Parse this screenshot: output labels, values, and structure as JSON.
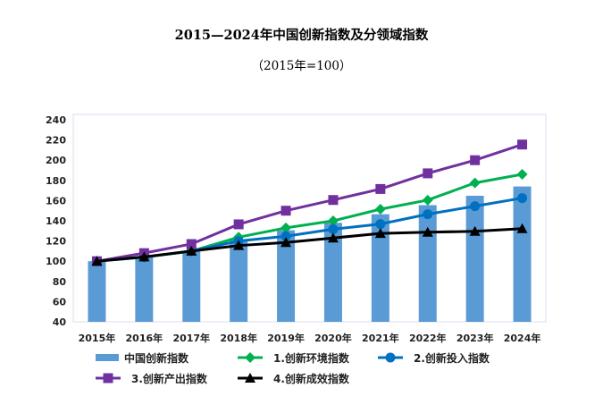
{
  "chart_data": {
    "type": "bar+line",
    "title": "2015—2024年中国创新指数及分领域指数",
    "subtitle": "（2015年=100）",
    "categories": [
      "2015年",
      "2016年",
      "2017年",
      "2018年",
      "2019年",
      "2020年",
      "2021年",
      "2022年",
      "2023年",
      "2024年"
    ],
    "ylim": [
      40,
      240
    ],
    "yticks": [
      40,
      60,
      80,
      100,
      120,
      140,
      160,
      180,
      200,
      220,
      240
    ],
    "grid": false,
    "legend_position": "bottom",
    "series": [
      {
        "name": "中国创新指数",
        "kind": "bar",
        "color": "#5b9bd5",
        "values": [
          100,
          104,
          110,
          121,
          130.6,
          138,
          146.5,
          155.5,
          164.8,
          174
        ]
      },
      {
        "name": "1.创新环境指数",
        "kind": "line",
        "marker": "diamond",
        "color": "#00b050",
        "values": [
          100,
          104,
          110,
          123.8,
          133,
          140,
          151.5,
          160.5,
          177.5,
          186
        ]
      },
      {
        "name": "2.创新投入指数",
        "kind": "line",
        "marker": "circle",
        "color": "#0070c0",
        "values": [
          100,
          104,
          110,
          120,
          124.7,
          131.7,
          136.8,
          146.5,
          154.5,
          162.5
        ]
      },
      {
        "name": "3.创新产出指数",
        "kind": "line",
        "marker": "square",
        "color": "#7030a0",
        "values": [
          100,
          108,
          117,
          136.5,
          150,
          160.6,
          171.5,
          187,
          200,
          215.5
        ]
      },
      {
        "name": "4.创新成效指数",
        "kind": "line",
        "marker": "triangle",
        "color": "#000000",
        "values": [
          100,
          104.3,
          110,
          115.5,
          118.5,
          123,
          127.5,
          128.7,
          129.6,
          132.3
        ]
      }
    ]
  }
}
